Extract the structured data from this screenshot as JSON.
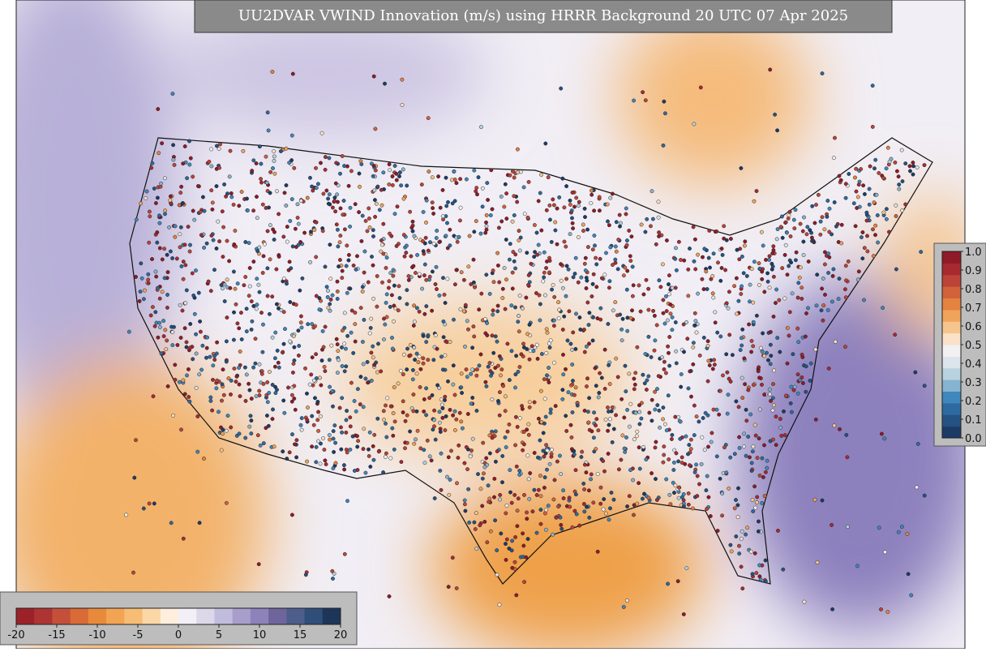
{
  "title": "UU2DVAR VWIND Innovation (m/s) using HRRR Background 20 UTC 07 Apr 2025",
  "innovation_colorbar": {
    "lim": [
      -20,
      20
    ],
    "ticks": [
      -20,
      -15,
      -10,
      -5,
      0,
      5,
      10,
      15,
      20
    ],
    "colors": [
      "#9c2229",
      "#ae3433",
      "#c4503a",
      "#d96b36",
      "#e88a3c",
      "#f2a452",
      "#f7bd75",
      "#fbd7a6",
      "#fdeedd",
      "#f2f0f6",
      "#dcd8ea",
      "#c2bcdc",
      "#a79ecb",
      "#8e82ba",
      "#6f659c",
      "#4d5d8c",
      "#2f4f7a",
      "#1d3558"
    ]
  },
  "observation_colorbar": {
    "lim": [
      0,
      1
    ],
    "ticks": [
      {
        "value": 0,
        "label": "0.0"
      },
      0.1,
      0.2,
      0.3,
      0.4,
      0.5,
      0.6,
      0.7,
      0.8,
      0.9,
      {
        "value": 1,
        "label": "1.0"
      }
    ],
    "colors": [
      "#1c3a66",
      "#245283",
      "#2d6aa0",
      "#3f87bd",
      "#86b3cf",
      "#b8d2df",
      "#dde5ec",
      "#f2f0f2",
      "#f9e2c8",
      "#f6c58d",
      "#f0a35a",
      "#e48240",
      "#d1623a",
      "#bc4337",
      "#a72a31",
      "#8f1a28"
    ]
  }
}
